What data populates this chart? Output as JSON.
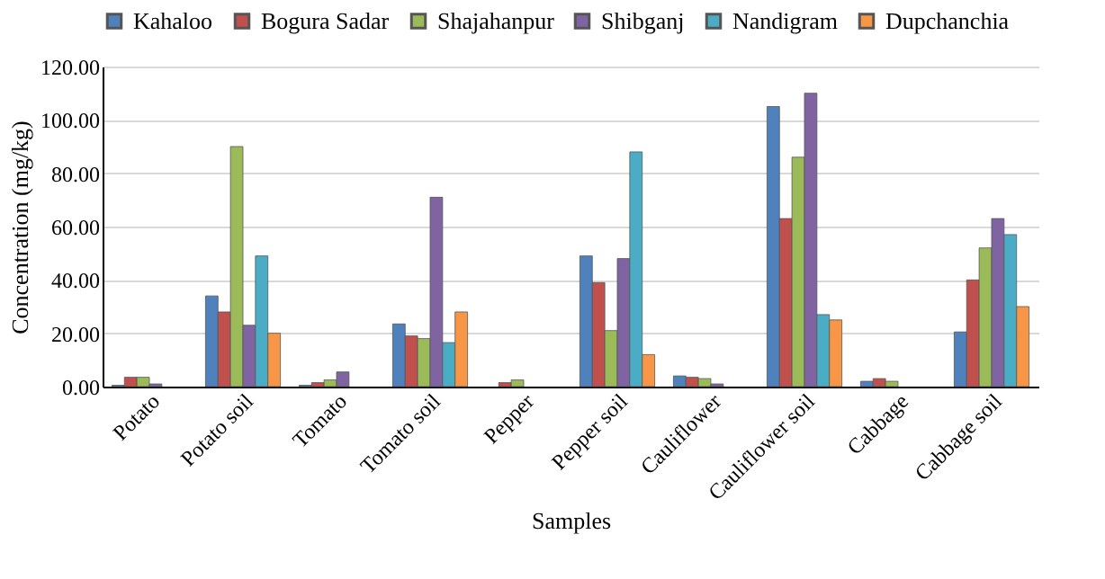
{
  "chart_data": {
    "type": "bar",
    "xlabel": "Samples",
    "ylabel": "Concentration (mg/kg)",
    "categories": [
      "Potato",
      "Potato soil",
      "Tomato",
      "Tomato soil",
      "Pepper",
      "Pepper soil",
      "Cauliflower",
      "Cauliflower soil",
      "Cabbage",
      "Cabbage soil"
    ],
    "series": [
      {
        "name": "Kahaloo",
        "color": "#4f81bd",
        "values": [
          0.5,
          34,
          0.5,
          23.5,
          null,
          49,
          4,
          105,
          2,
          20.5
        ]
      },
      {
        "name": "Bogura Sadar",
        "color": "#c0504d",
        "values": [
          3.5,
          28,
          1.5,
          19,
          1.5,
          39,
          3.5,
          63,
          3,
          40
        ]
      },
      {
        "name": "Shajahanpur",
        "color": "#9bbb59",
        "values": [
          3.5,
          90,
          2.5,
          18,
          2.5,
          21,
          3,
          86,
          2,
          52
        ]
      },
      {
        "name": "Shibganj",
        "color": "#8064a2",
        "values": [
          1,
          23,
          5.5,
          71,
          null,
          48,
          1,
          110,
          null,
          63
        ]
      },
      {
        "name": "Nandigram",
        "color": "#4bacc6",
        "values": [
          null,
          49,
          null,
          16.5,
          null,
          88,
          null,
          27,
          null,
          57
        ]
      },
      {
        "name": "Dupchanchia",
        "color": "#f79646",
        "values": [
          null,
          20,
          null,
          28,
          null,
          12,
          null,
          25,
          null,
          30
        ]
      }
    ],
    "ylim": [
      0,
      120
    ],
    "yticks": [
      {
        "value": 0,
        "label": "0.00"
      },
      {
        "value": 20,
        "label": "20.00"
      },
      {
        "value": 40,
        "label": "40.00"
      },
      {
        "value": 60,
        "label": "60.00"
      },
      {
        "value": 80,
        "label": "80.00"
      },
      {
        "value": 100,
        "label": "100.00"
      },
      {
        "value": 120,
        "label": "120.00"
      }
    ],
    "grid": "y",
    "legend": "top"
  }
}
